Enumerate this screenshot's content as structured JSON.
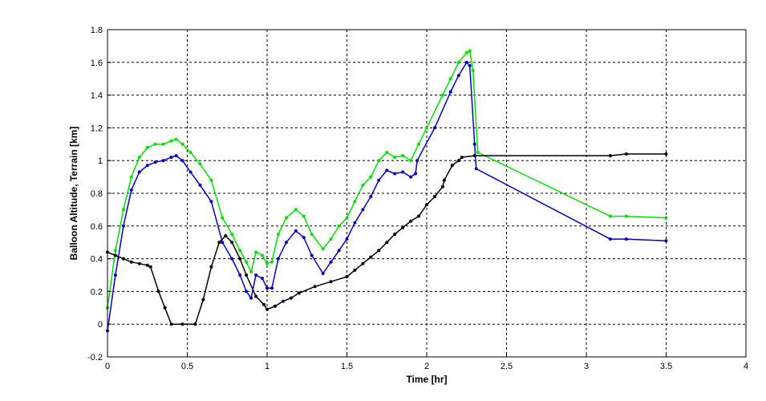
{
  "chart_data": {
    "type": "line",
    "title": "",
    "xlabel": "Time [hr]",
    "ylabel": "Balloon Altitude, Terrain [km]",
    "xlim": [
      0,
      4
    ],
    "ylim": [
      -0.2,
      1.8
    ],
    "xticks": [
      0,
      0.5,
      1,
      1.5,
      2,
      2.5,
      3,
      3.5,
      4
    ],
    "xtick_labels": [
      "0",
      "0.5",
      "1",
      "1.5",
      "2",
      "2.5",
      "3",
      "3.5",
      "4"
    ],
    "yticks": [
      -0.2,
      0,
      0.2,
      0.4,
      0.6,
      0.8,
      1,
      1.2,
      1.4,
      1.6,
      1.8
    ],
    "ytick_labels": [
      "-0.2",
      "0",
      "0.2",
      "0.4",
      "0.6",
      "0.8",
      "1",
      "1.2",
      "1.4",
      "1.6",
      "1.8"
    ],
    "grid": true,
    "legend": "none",
    "series": [
      {
        "color": "#00e000",
        "points": [
          [
            0.0,
            0.1
          ],
          [
            0.05,
            0.45
          ],
          [
            0.1,
            0.7
          ],
          [
            0.15,
            0.9
          ],
          [
            0.2,
            1.02
          ],
          [
            0.25,
            1.08
          ],
          [
            0.3,
            1.1
          ],
          [
            0.35,
            1.1
          ],
          [
            0.4,
            1.12
          ],
          [
            0.43,
            1.13
          ],
          [
            0.47,
            1.1
          ],
          [
            0.52,
            1.05
          ],
          [
            0.58,
            0.98
          ],
          [
            0.65,
            0.88
          ],
          [
            0.72,
            0.65
          ],
          [
            0.78,
            0.55
          ],
          [
            0.83,
            0.45
          ],
          [
            0.87,
            0.38
          ],
          [
            0.9,
            0.32
          ],
          [
            0.93,
            0.44
          ],
          [
            0.97,
            0.42
          ],
          [
            1.0,
            0.37
          ],
          [
            1.03,
            0.38
          ],
          [
            1.07,
            0.55
          ],
          [
            1.12,
            0.65
          ],
          [
            1.18,
            0.7
          ],
          [
            1.23,
            0.66
          ],
          [
            1.28,
            0.55
          ],
          [
            1.35,
            0.46
          ],
          [
            1.4,
            0.52
          ],
          [
            1.45,
            0.6
          ],
          [
            1.5,
            0.65
          ],
          [
            1.55,
            0.75
          ],
          [
            1.6,
            0.85
          ],
          [
            1.65,
            0.9
          ],
          [
            1.7,
            1.0
          ],
          [
            1.75,
            1.05
          ],
          [
            1.8,
            1.02
          ],
          [
            1.85,
            1.03
          ],
          [
            1.9,
            1.0
          ],
          [
            1.95,
            1.1
          ],
          [
            2.0,
            1.2
          ],
          [
            2.1,
            1.4
          ],
          [
            2.15,
            1.5
          ],
          [
            2.2,
            1.6
          ],
          [
            2.25,
            1.66
          ],
          [
            2.27,
            1.67
          ],
          [
            2.29,
            1.55
          ],
          [
            2.32,
            1.05
          ],
          [
            3.15,
            0.66
          ],
          [
            3.25,
            0.66
          ],
          [
            3.5,
            0.65
          ]
        ]
      },
      {
        "color": "#0000c8",
        "points": [
          [
            0.0,
            -0.04
          ],
          [
            0.05,
            0.3
          ],
          [
            0.1,
            0.6
          ],
          [
            0.15,
            0.82
          ],
          [
            0.2,
            0.93
          ],
          [
            0.25,
            0.97
          ],
          [
            0.3,
            0.99
          ],
          [
            0.35,
            1.0
          ],
          [
            0.4,
            1.02
          ],
          [
            0.43,
            1.03
          ],
          [
            0.47,
            1.0
          ],
          [
            0.52,
            0.93
          ],
          [
            0.58,
            0.85
          ],
          [
            0.65,
            0.75
          ],
          [
            0.72,
            0.5
          ],
          [
            0.78,
            0.4
          ],
          [
            0.83,
            0.3
          ],
          [
            0.87,
            0.2
          ],
          [
            0.9,
            0.16
          ],
          [
            0.93,
            0.3
          ],
          [
            0.97,
            0.28
          ],
          [
            1.0,
            0.22
          ],
          [
            1.03,
            0.22
          ],
          [
            1.07,
            0.4
          ],
          [
            1.12,
            0.5
          ],
          [
            1.18,
            0.57
          ],
          [
            1.23,
            0.53
          ],
          [
            1.28,
            0.42
          ],
          [
            1.35,
            0.31
          ],
          [
            1.4,
            0.38
          ],
          [
            1.45,
            0.45
          ],
          [
            1.5,
            0.52
          ],
          [
            1.55,
            0.62
          ],
          [
            1.6,
            0.7
          ],
          [
            1.65,
            0.78
          ],
          [
            1.7,
            0.88
          ],
          [
            1.75,
            0.94
          ],
          [
            1.8,
            0.92
          ],
          [
            1.85,
            0.93
          ],
          [
            1.9,
            0.9
          ],
          [
            1.93,
            0.92
          ],
          [
            1.94,
            1.0
          ],
          [
            2.05,
            1.2
          ],
          [
            2.15,
            1.42
          ],
          [
            2.2,
            1.52
          ],
          [
            2.25,
            1.6
          ],
          [
            2.27,
            1.58
          ],
          [
            2.3,
            1.1
          ],
          [
            2.31,
            0.95
          ],
          [
            3.15,
            0.52
          ],
          [
            3.25,
            0.52
          ],
          [
            3.5,
            0.51
          ]
        ]
      },
      {
        "color": "#000000",
        "points": [
          [
            0.0,
            0.44
          ],
          [
            0.05,
            0.42
          ],
          [
            0.1,
            0.4
          ],
          [
            0.15,
            0.38
          ],
          [
            0.2,
            0.37
          ],
          [
            0.25,
            0.36
          ],
          [
            0.27,
            0.35
          ],
          [
            0.32,
            0.2
          ],
          [
            0.36,
            0.1
          ],
          [
            0.4,
            0.0
          ],
          [
            0.47,
            0.0
          ],
          [
            0.55,
            0.0
          ],
          [
            0.6,
            0.15
          ],
          [
            0.65,
            0.35
          ],
          [
            0.7,
            0.5
          ],
          [
            0.74,
            0.54
          ],
          [
            0.78,
            0.5
          ],
          [
            0.83,
            0.4
          ],
          [
            0.87,
            0.3
          ],
          [
            0.93,
            0.17
          ],
          [
            0.98,
            0.12
          ],
          [
            1.0,
            0.09
          ],
          [
            1.05,
            0.11
          ],
          [
            1.1,
            0.14
          ],
          [
            1.15,
            0.16
          ],
          [
            1.2,
            0.19
          ],
          [
            1.3,
            0.23
          ],
          [
            1.4,
            0.26
          ],
          [
            1.5,
            0.29
          ],
          [
            1.55,
            0.33
          ],
          [
            1.6,
            0.37
          ],
          [
            1.65,
            0.41
          ],
          [
            1.7,
            0.45
          ],
          [
            1.75,
            0.5
          ],
          [
            1.8,
            0.55
          ],
          [
            1.85,
            0.59
          ],
          [
            1.9,
            0.63
          ],
          [
            1.95,
            0.66
          ],
          [
            2.0,
            0.73
          ],
          [
            2.05,
            0.78
          ],
          [
            2.1,
            0.84
          ],
          [
            2.11,
            0.88
          ],
          [
            2.16,
            0.97
          ],
          [
            2.2,
            1.0
          ],
          [
            2.22,
            1.02
          ],
          [
            2.3,
            1.03
          ],
          [
            3.15,
            1.03
          ],
          [
            3.25,
            1.04
          ],
          [
            3.5,
            1.04
          ]
        ]
      }
    ]
  }
}
